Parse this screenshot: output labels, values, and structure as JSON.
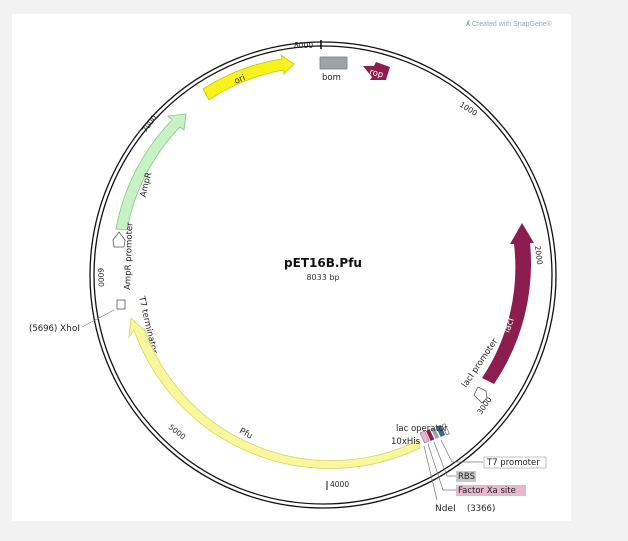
{
  "credit": "Created with SnapGene®",
  "plasmid": {
    "name": "pET16B.Pfu",
    "size_label": "8033 bp"
  },
  "ticks": [
    "1000",
    "2000",
    "3000",
    "4000",
    "5000",
    "6000",
    "7000",
    "8000"
  ],
  "features": {
    "ori": "ori",
    "rop": "rop",
    "bom": "bom",
    "lacI": "lacI",
    "lacI_promoter": "lacI promoter",
    "lac_operator": "lac operator",
    "his_tag": "10xHis",
    "pfu": "Pfu",
    "t7_terminator": "T7 terminator",
    "ampr_promoter": "AmpR promoter",
    "ampr": "AmpR"
  },
  "callouts": {
    "t7_promoter": "T7 promoter",
    "rbs": "RBS",
    "factor_xa": "Factor Xa site"
  },
  "sites": {
    "xhoi_pos": "(5696)",
    "xhoi_name": "XhoI",
    "ndei_name": "NdeI",
    "ndei_pos": "(3366)"
  },
  "colors": {
    "ori": "#f7f21e",
    "rop": "#8b1d4f",
    "bom": "#9ea3a8",
    "lacI": "#8b1d4f",
    "ampr": "#c8f2c5",
    "pfu": "#f9f79c",
    "rbs_label_bg": "#c9c9c9",
    "factor_xa_label_bg": "#e7b8cc"
  }
}
